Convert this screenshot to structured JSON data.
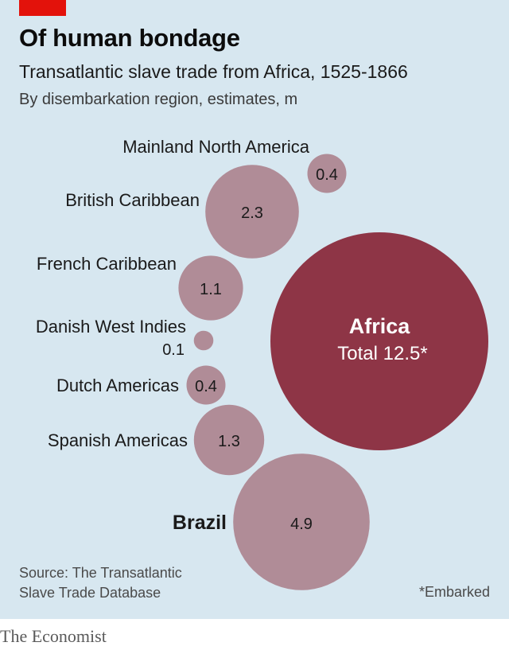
{
  "header": {
    "title": "Of human bondage",
    "subtitle": "Transatlantic slave trade from Africa, 1525-1866",
    "unit": "By disembarkation region, estimates, m"
  },
  "footer": {
    "source_line1": "Source: The Transatlantic",
    "source_line2": "Slave Trade Database",
    "footnote": "*Embarked",
    "brand": "The Economist"
  },
  "colors": {
    "panel": "#d7e7f0",
    "region_bubble": "#b08c97",
    "total_bubble": "#8e3546",
    "accent": "#e3120b"
  },
  "chart_data": {
    "type": "bubble",
    "categories": [
      "Mainland North America",
      "British Caribbean",
      "French Caribbean",
      "Danish West Indies",
      "Dutch Americas",
      "Spanish Americas",
      "Brazil"
    ],
    "values": [
      0.4,
      2.3,
      1.1,
      0.1,
      0.4,
      1.3,
      4.9
    ],
    "value_labels": [
      "0.4",
      "2.3",
      "1.1",
      "0.1",
      "0.4",
      "1.3",
      "4.9"
    ],
    "total": {
      "name": "Africa",
      "label": "Total 12.5*",
      "value": 12.5
    }
  }
}
